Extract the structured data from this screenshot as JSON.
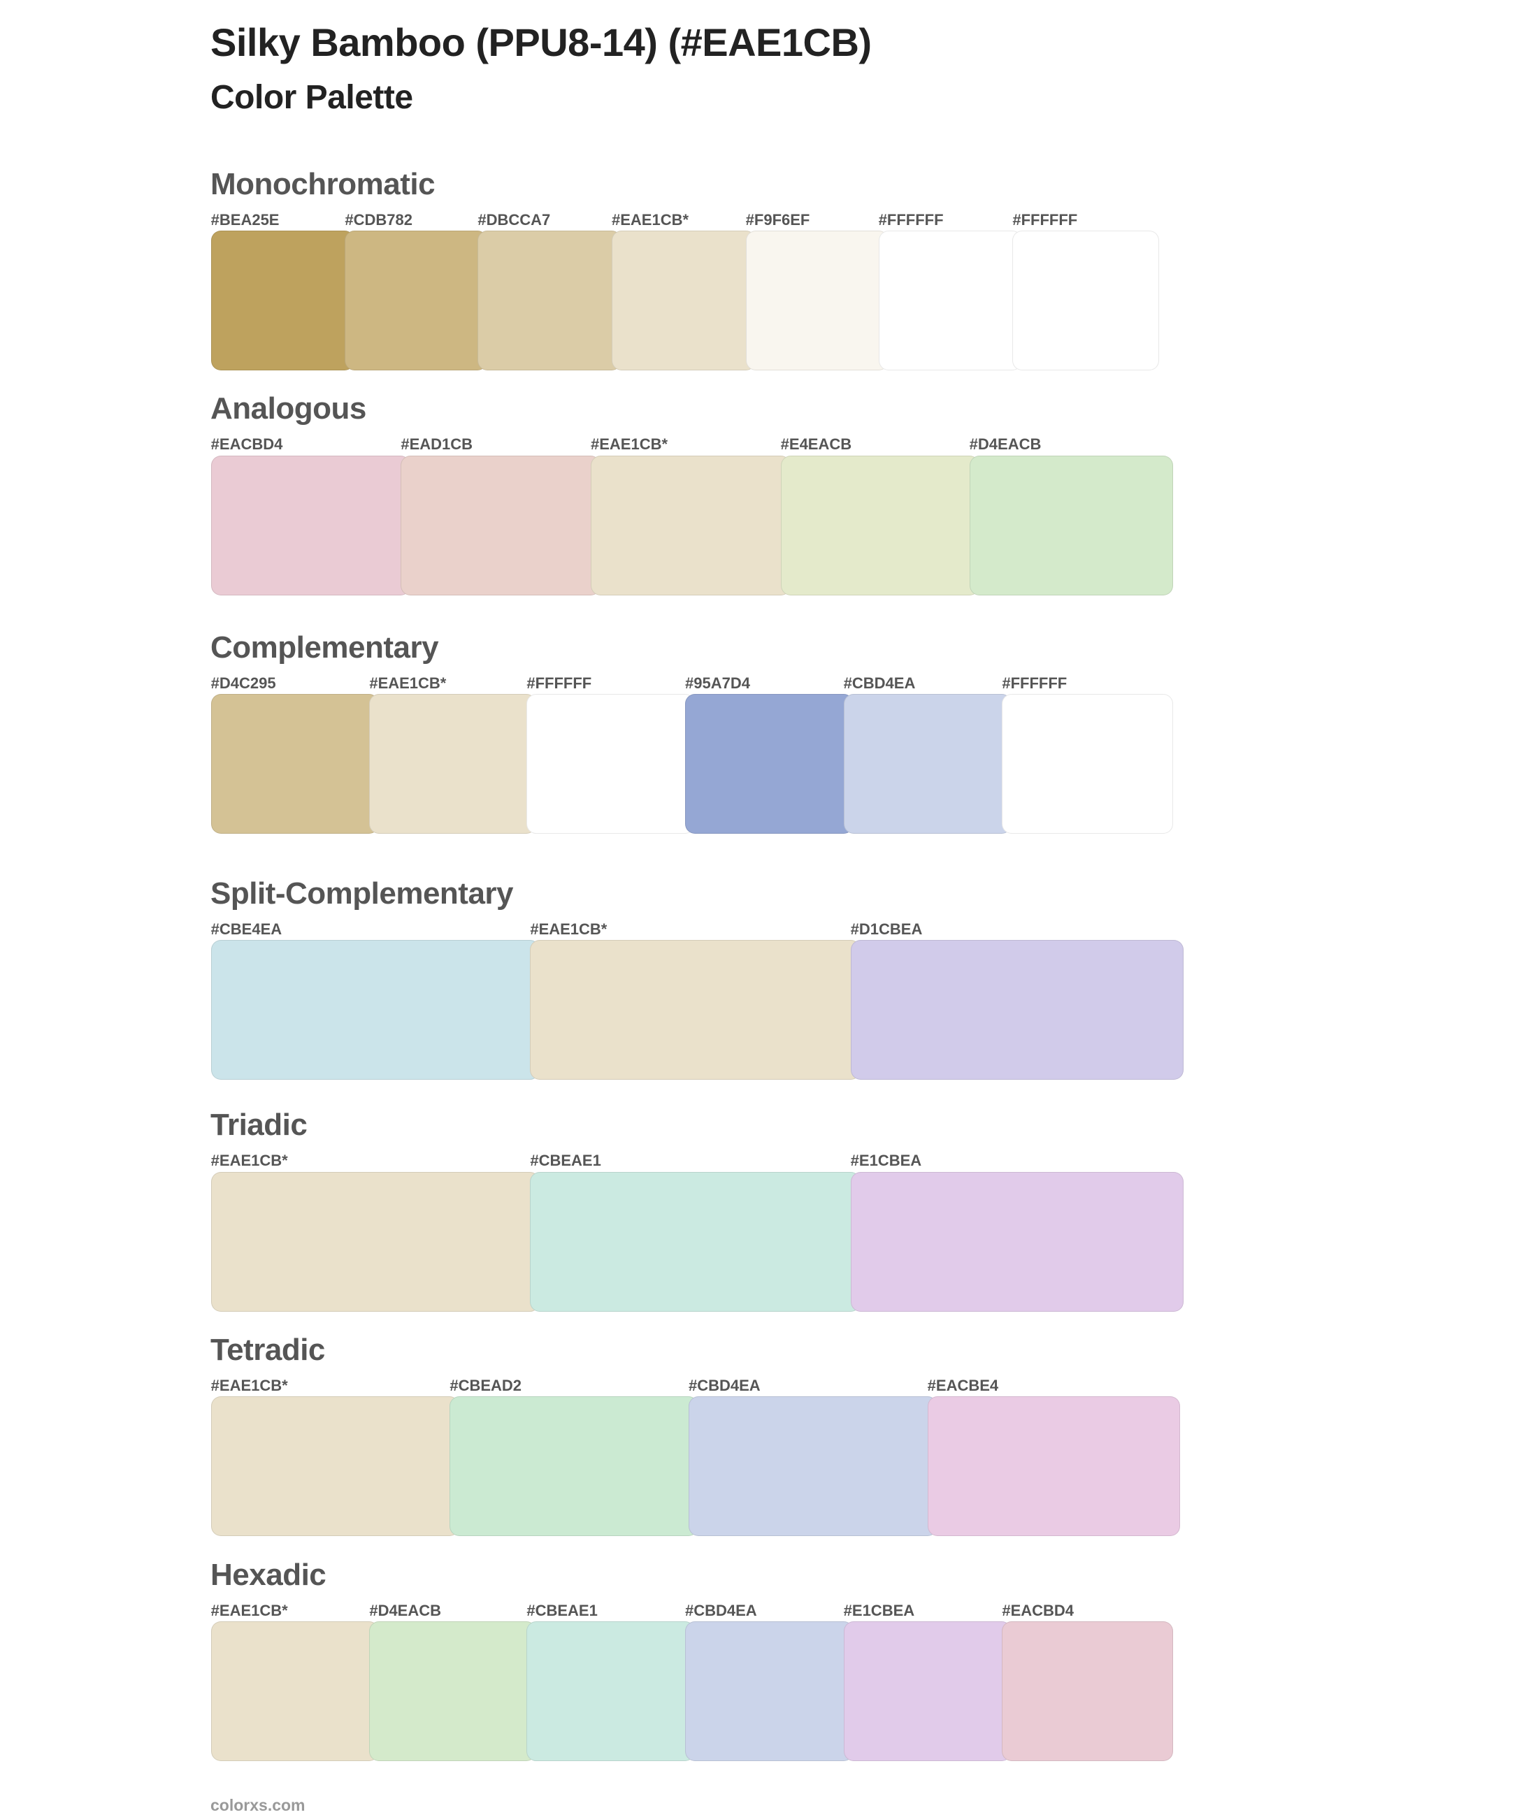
{
  "header": {
    "title": "Silky Bamboo (PPU8-14) (#EAE1CB)",
    "subtitle": "Color Palette"
  },
  "sections": [
    {
      "name": "Monochromatic",
      "swatches": [
        {
          "label": "#BEA25E",
          "color": "#BEA25E"
        },
        {
          "label": "#CDB782",
          "color": "#CDB782"
        },
        {
          "label": "#DBCCA7",
          "color": "#DBCCA7"
        },
        {
          "label": "#EAE1CB*",
          "color": "#EAE1CB"
        },
        {
          "label": "#F9F6EF",
          "color": "#F9F6EF"
        },
        {
          "label": "#FFFFFF",
          "color": "#FFFFFF"
        },
        {
          "label": "#FFFFFF",
          "color": "#FFFFFF"
        }
      ]
    },
    {
      "name": "Analogous",
      "swatches": [
        {
          "label": "#EACBD4",
          "color": "#EACBD4"
        },
        {
          "label": "#EAD1CB",
          "color": "#EAD1CB"
        },
        {
          "label": "#EAE1CB*",
          "color": "#EAE1CB"
        },
        {
          "label": "#E4EACB",
          "color": "#E4EACB"
        },
        {
          "label": "#D4EACB",
          "color": "#D4EACB"
        }
      ]
    },
    {
      "name": "Complementary",
      "swatches": [
        {
          "label": "#D4C295",
          "color": "#D4C295"
        },
        {
          "label": "#EAE1CB*",
          "color": "#EAE1CB"
        },
        {
          "label": "#FFFFFF",
          "color": "#FFFFFF"
        },
        {
          "label": "#95A7D4",
          "color": "#95A7D4"
        },
        {
          "label": "#CBD4EA",
          "color": "#CBD4EA"
        },
        {
          "label": "#FFFFFF",
          "color": "#FFFFFF"
        }
      ]
    },
    {
      "name": "Split-Complementary",
      "swatches": [
        {
          "label": "#CBE4EA",
          "color": "#CBE4EA"
        },
        {
          "label": "#EAE1CB*",
          "color": "#EAE1CB"
        },
        {
          "label": "#D1CBEA",
          "color": "#D1CBEA"
        }
      ]
    },
    {
      "name": "Triadic",
      "swatches": [
        {
          "label": "#EAE1CB*",
          "color": "#EAE1CB"
        },
        {
          "label": "#CBEAE1",
          "color": "#CBEAE1"
        },
        {
          "label": "#E1CBEA",
          "color": "#E1CBEA"
        }
      ]
    },
    {
      "name": "Tetradic",
      "swatches": [
        {
          "label": "#EAE1CB*",
          "color": "#EAE1CB"
        },
        {
          "label": "#CBEAD2",
          "color": "#CBEAD2"
        },
        {
          "label": "#CBD4EA",
          "color": "#CBD4EA"
        },
        {
          "label": "#EACBE4",
          "color": "#EACBE4"
        }
      ]
    },
    {
      "name": "Hexadic",
      "swatches": [
        {
          "label": "#EAE1CB*",
          "color": "#EAE1CB"
        },
        {
          "label": "#D4EACB",
          "color": "#D4EACB"
        },
        {
          "label": "#CBEAE1",
          "color": "#CBEAE1"
        },
        {
          "label": "#CBD4EA",
          "color": "#CBD4EA"
        },
        {
          "label": "#E1CBEA",
          "color": "#E1CBEA"
        },
        {
          "label": "#EACBD4",
          "color": "#EACBD4"
        }
      ]
    }
  ],
  "footer": {
    "text": "colorxs.com"
  }
}
